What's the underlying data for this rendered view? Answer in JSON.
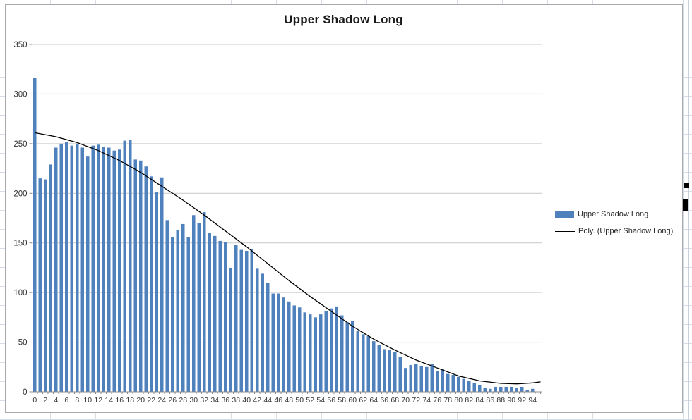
{
  "chart": {
    "title": "Upper Shadow Long",
    "legend": [
      {
        "label": "Upper Shadow Long",
        "swatch": "bar"
      },
      {
        "label": "Poly. (Upper Shadow Long)",
        "swatch": "line"
      }
    ]
  },
  "chart_data": {
    "type": "bar",
    "title": "Upper Shadow Long",
    "xlabel": "",
    "ylabel": "",
    "ylim": [
      0,
      350
    ],
    "yticks": [
      0,
      50,
      100,
      150,
      200,
      250,
      300,
      350
    ],
    "xticks": [
      0,
      2,
      4,
      6,
      8,
      10,
      12,
      14,
      16,
      18,
      20,
      22,
      24,
      26,
      28,
      30,
      32,
      34,
      36,
      38,
      40,
      42,
      44,
      46,
      48,
      50,
      52,
      54,
      56,
      58,
      60,
      62,
      64,
      66,
      68,
      70,
      72,
      74,
      76,
      78,
      80,
      82,
      84,
      86,
      88,
      90,
      92,
      94
    ],
    "x": [
      0,
      1,
      2,
      3,
      4,
      5,
      6,
      7,
      8,
      9,
      10,
      11,
      12,
      13,
      14,
      15,
      16,
      17,
      18,
      19,
      20,
      21,
      22,
      23,
      24,
      25,
      26,
      27,
      28,
      29,
      30,
      31,
      32,
      33,
      34,
      35,
      36,
      37,
      38,
      39,
      40,
      41,
      42,
      43,
      44,
      45,
      46,
      47,
      48,
      49,
      50,
      51,
      52,
      53,
      54,
      55,
      56,
      57,
      58,
      59,
      60,
      61,
      62,
      63,
      64,
      65,
      66,
      67,
      68,
      69,
      70,
      71,
      72,
      73,
      74,
      75,
      76,
      77,
      78,
      79,
      80,
      81,
      82,
      83,
      84,
      85,
      86,
      87,
      88,
      89,
      90,
      91,
      92,
      93,
      94
    ],
    "grid": "horizontal",
    "legend_position": "right",
    "series": [
      {
        "name": "Upper Shadow Long",
        "type": "bar",
        "values": [
          316,
          215,
          214,
          229,
          246,
          250,
          252,
          248,
          250,
          246,
          237,
          248,
          249,
          247,
          246,
          243,
          244,
          253,
          254,
          234,
          233,
          227,
          217,
          201,
          216,
          173,
          156,
          163,
          169,
          156,
          178,
          170,
          181,
          160,
          157,
          152,
          151,
          125,
          148,
          143,
          142,
          144,
          124,
          119,
          110,
          99,
          99,
          95,
          91,
          87,
          85,
          80,
          78,
          75,
          78,
          81,
          84,
          86,
          77,
          70,
          71,
          61,
          58,
          56,
          51,
          47,
          43,
          42,
          40,
          35,
          24,
          27,
          28,
          26,
          25,
          28,
          21,
          23,
          18,
          17,
          15,
          13,
          11,
          9,
          7,
          4,
          3,
          5,
          5,
          5,
          5,
          4,
          5,
          2,
          3
        ]
      },
      {
        "name": "Poly. (Upper Shadow Long)",
        "type": "trendline",
        "sample_x": [
          0,
          4,
          8,
          12,
          16,
          20,
          24,
          28,
          32,
          36,
          40,
          44,
          48,
          52,
          56,
          60,
          64,
          68,
          72,
          76,
          80,
          84,
          88,
          91,
          94,
          95.5
        ],
        "sample_y": [
          261,
          257,
          251,
          243,
          233,
          221,
          207,
          193,
          178,
          162,
          146,
          129,
          112,
          96,
          81,
          66,
          53,
          42,
          32,
          24,
          16,
          11,
          8.5,
          8,
          9,
          10
        ]
      }
    ]
  },
  "colors": {
    "bar": "#4F81BD",
    "trendline": "#000000",
    "gridline": "#C9C9C9",
    "axis": "#8C8C8C",
    "text": "#333333",
    "sheet_line": "#D5DDE8",
    "chart_border": "#A9A9A9",
    "background": "#FFFFFF"
  }
}
